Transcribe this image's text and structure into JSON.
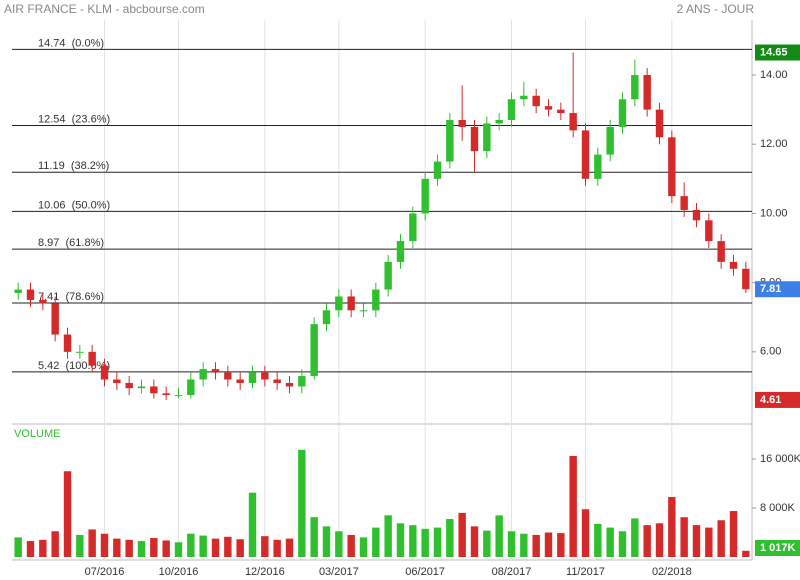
{
  "chart_data": {
    "type": "candlestick",
    "title": "AIR FRANCE - KLM - abcbourse.com",
    "period": "2 ANS - JOUR",
    "up_color": "#2fbf2f",
    "down_color": "#d42a2a",
    "categories": [
      null,
      null,
      null,
      null,
      null,
      null,
      null,
      "07/2016",
      null,
      null,
      null,
      null,
      null,
      "10/2016",
      null,
      null,
      null,
      null,
      null,
      null,
      "12/2016",
      null,
      null,
      null,
      null,
      null,
      "03/2017",
      null,
      null,
      null,
      null,
      null,
      null,
      "06/2017",
      null,
      null,
      null,
      null,
      null,
      null,
      "08/2017",
      null,
      null,
      null,
      null,
      null,
      "11/2017",
      null,
      null,
      null,
      null,
      null,
      null,
      "02/2018",
      null,
      null,
      null,
      null,
      null,
      null
    ],
    "open": [
      7.7,
      7.8,
      7.5,
      7.4,
      6.5,
      6.0,
      6.0,
      5.6,
      5.2,
      5.1,
      4.95,
      5.0,
      4.8,
      4.75,
      4.75,
      5.2,
      5.5,
      5.4,
      5.2,
      5.1,
      5.4,
      5.2,
      5.1,
      5.0,
      5.3,
      6.8,
      7.2,
      7.6,
      7.2,
      7.2,
      7.8,
      8.6,
      9.2,
      10.0,
      11.0,
      11.5,
      12.7,
      12.5,
      11.8,
      12.6,
      12.7,
      13.3,
      13.4,
      13.1,
      13.0,
      12.9,
      12.4,
      11.0,
      11.7,
      12.5,
      13.3,
      14.0,
      13.0,
      12.2,
      10.5,
      10.1,
      9.8,
      9.2,
      8.6,
      8.4
    ],
    "high": [
      8.0,
      8.0,
      7.7,
      7.6,
      6.7,
      6.2,
      6.2,
      5.8,
      5.4,
      5.3,
      5.2,
      5.2,
      5.0,
      4.95,
      5.4,
      5.7,
      5.7,
      5.6,
      5.4,
      5.6,
      5.6,
      5.4,
      5.3,
      5.5,
      7.0,
      7.4,
      7.8,
      7.8,
      7.4,
      8.0,
      8.8,
      9.4,
      10.2,
      11.2,
      11.7,
      12.9,
      13.7,
      12.7,
      12.8,
      12.9,
      13.5,
      13.8,
      13.6,
      13.3,
      13.2,
      14.65,
      12.6,
      11.9,
      12.7,
      13.5,
      14.45,
      14.2,
      13.2,
      12.4,
      10.9,
      10.3,
      10.0,
      9.4,
      8.8,
      8.6
    ],
    "low": [
      7.5,
      7.3,
      7.2,
      6.3,
      5.8,
      5.8,
      5.4,
      5.0,
      4.9,
      4.75,
      4.8,
      4.65,
      4.61,
      4.65,
      4.65,
      5.0,
      5.2,
      5.0,
      4.9,
      4.95,
      5.0,
      4.9,
      4.8,
      4.8,
      5.2,
      6.6,
      7.0,
      7.0,
      7.0,
      7.0,
      7.6,
      8.4,
      9.0,
      9.8,
      10.8,
      11.3,
      12.1,
      11.2,
      11.6,
      12.4,
      12.5,
      13.1,
      12.9,
      12.8,
      12.7,
      12.2,
      10.8,
      10.8,
      11.5,
      12.3,
      13.1,
      12.8,
      12.0,
      10.3,
      9.9,
      9.6,
      9.0,
      8.4,
      8.2,
      7.7
    ],
    "close": [
      7.8,
      7.5,
      7.4,
      6.5,
      6.0,
      6.0,
      5.6,
      5.2,
      5.1,
      4.95,
      5.0,
      4.8,
      4.75,
      4.75,
      5.2,
      5.5,
      5.4,
      5.2,
      5.1,
      5.4,
      5.2,
      5.1,
      5.0,
      5.3,
      6.8,
      7.2,
      7.6,
      7.2,
      7.2,
      7.8,
      8.6,
      9.2,
      10.0,
      11.0,
      11.5,
      12.7,
      12.5,
      11.8,
      12.6,
      12.7,
      13.3,
      13.4,
      13.1,
      13.0,
      12.9,
      12.4,
      11.0,
      11.7,
      12.5,
      13.3,
      14.0,
      13.0,
      12.2,
      10.5,
      10.1,
      9.8,
      9.2,
      8.6,
      8.4,
      7.81
    ],
    "ylim": [
      4.03,
      15.59
    ],
    "yticks": [
      {
        "value": 6,
        "label": "6.00"
      },
      {
        "value": 8,
        "label": "8.00"
      },
      {
        "value": 10,
        "label": "10.00"
      },
      {
        "value": 12,
        "label": "12.00"
      },
      {
        "value": 14,
        "label": "14.00"
      }
    ],
    "fib_levels": [
      {
        "value": 14.74,
        "label": "14.74  (0.0%)"
      },
      {
        "value": 12.54,
        "label": "12.54  (23.6%)"
      },
      {
        "value": 11.19,
        "label": "11.19  (38.2%)"
      },
      {
        "value": 10.06,
        "label": "10.06  (50.0%)"
      },
      {
        "value": 8.97,
        "label": "8.97  (61.8%)"
      },
      {
        "value": 7.41,
        "label": "7.41  (78.6%)"
      },
      {
        "value": 5.42,
        "label": "5.42  (100.0%)"
      }
    ],
    "high_tag_color": "#138a13",
    "last_tag_color": "#3d7fe8",
    "low_tag_color": "#d42a2a",
    "volume_title": "VOLUME",
    "volume": [
      3200,
      2600,
      2800,
      4200,
      14000,
      3600,
      4500,
      3800,
      3000,
      2800,
      2600,
      3100,
      2700,
      2400,
      3800,
      3500,
      3000,
      3300,
      2900,
      10500,
      3400,
      2800,
      3000,
      17500,
      6500,
      5000,
      4200,
      3600,
      3200,
      4800,
      6800,
      5500,
      5200,
      4600,
      4800,
      6200,
      7200,
      5000,
      4300,
      6800,
      4200,
      3800,
      3600,
      4000,
      3900,
      16500,
      7800,
      5400,
      4800,
      4200,
      6300,
      5200,
      5500,
      9800,
      6500,
      5200,
      4800,
      6000,
      7500,
      1017
    ],
    "volume_last_label": "1 017K",
    "volume_ylim": [
      0,
      21550
    ],
    "volume_yticks": [
      {
        "value": 8000,
        "label": "8 000K"
      },
      {
        "value": 16000,
        "label": "16 000K"
      }
    ]
  }
}
